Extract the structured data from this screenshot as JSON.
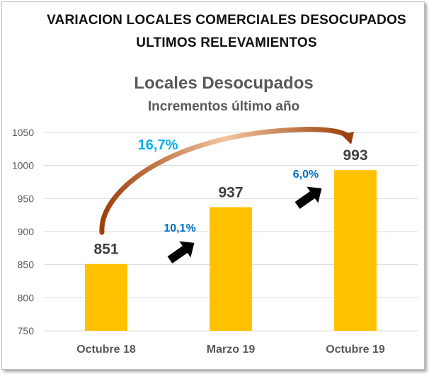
{
  "header": {
    "line1": "VARIACION LOCALES COMERCIALES DESOCUPADOS",
    "line2": "ULTIMOS RELEVAMIENTOS"
  },
  "chart_data": {
    "type": "bar",
    "title": "Locales Desocupados",
    "subtitle": "Incrementos último año",
    "categories": [
      "Octubre 18",
      "Marzo 19",
      "Octubre 19"
    ],
    "values": [
      851,
      937,
      993
    ],
    "data_labels": [
      "851",
      "937",
      "993"
    ],
    "xlabel": "",
    "ylabel": "",
    "ylim": [
      750,
      1050
    ],
    "yticks": [
      750,
      800,
      850,
      900,
      950,
      1000,
      1050
    ],
    "grid": true,
    "legend": "none",
    "annotations": [
      {
        "text": "16,7%",
        "from": "Octubre 18",
        "to": "Octubre 19"
      },
      {
        "text": "10,1%",
        "from": "Octubre 18",
        "to": "Marzo 19"
      },
      {
        "text": "6,0%",
        "from": "Marzo 19",
        "to": "Octubre 19"
      }
    ]
  },
  "colors": {
    "bar": "#FFC000",
    "grid": "#D9D9D9",
    "axis_text": "#595959",
    "value_label": "#404040",
    "pct_large": "#00B0F0",
    "pct_small": "#0070C0",
    "curve_arrow": "#C55A11",
    "step_arrow": "#000000"
  }
}
